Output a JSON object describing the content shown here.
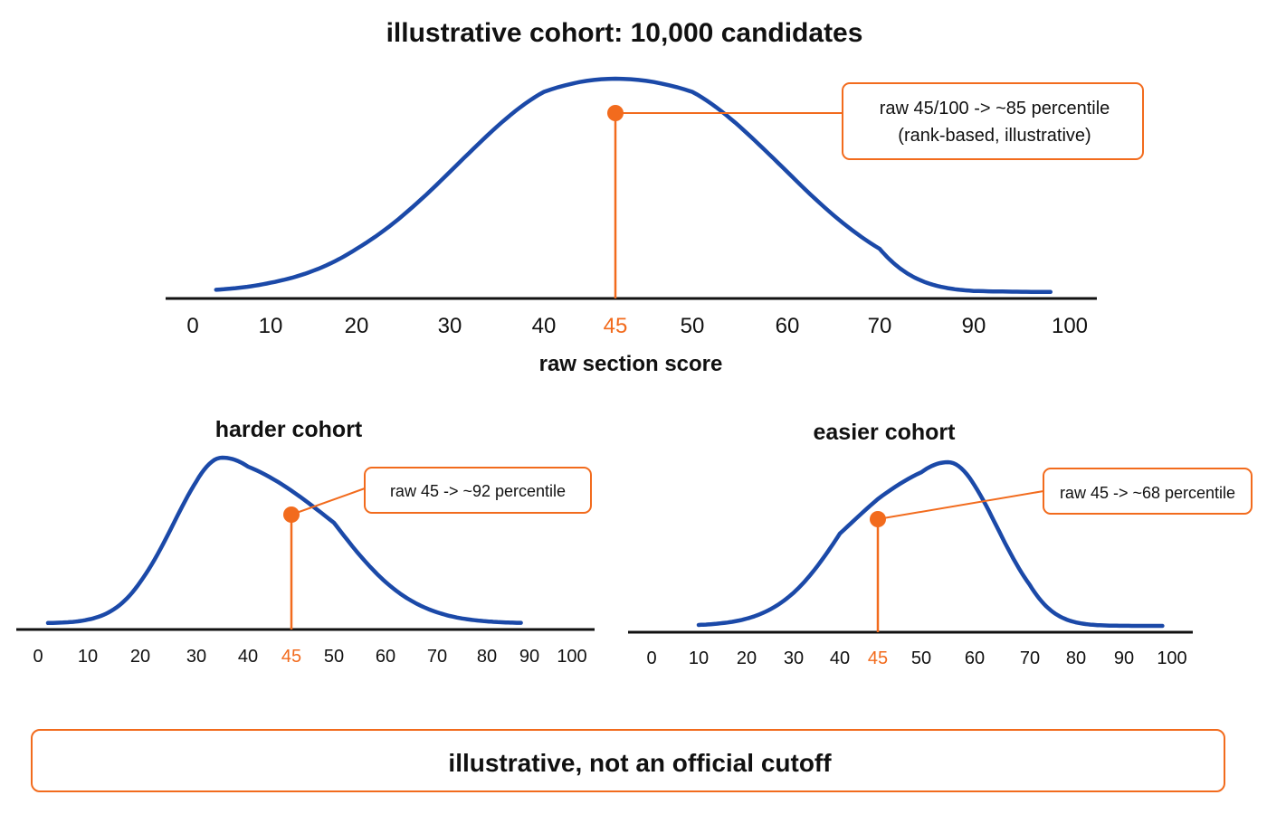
{
  "colors": {
    "curve": "#1b49a8",
    "highlight": "#f26b1d",
    "axis": "#111111",
    "text": "#111111"
  },
  "main_title": "illustrative cohort: 10,000 candidates",
  "footer": "illustrative, not an official cutoff",
  "chart_data": [
    {
      "type": "line",
      "title": "illustrative cohort: 10,000 candidates",
      "xlabel": "raw section score",
      "ylabel": "",
      "x_ticks": [
        "0",
        "10",
        "20",
        "30",
        "40",
        "45",
        "50",
        "60",
        "70",
        "90",
        "100"
      ],
      "highlight_tick": "45",
      "curve": {
        "shape": "normal",
        "peak_x": 45,
        "x_range": [
          3,
          98
        ]
      },
      "marker": {
        "x": 45
      },
      "annotation": [
        "raw 45/100 -> ~85 percentile",
        "(rank-based, illustrative)"
      ],
      "grid": false,
      "legend": "none"
    },
    {
      "type": "line",
      "title": "harder cohort",
      "xlabel": "",
      "ylabel": "",
      "x_ticks": [
        "0",
        "10",
        "20",
        "30",
        "40",
        "45",
        "50",
        "60",
        "70",
        "80",
        "90",
        "100"
      ],
      "highlight_tick": "45",
      "curve": {
        "shape": "right-skewed",
        "peak_x": 35,
        "x_range": [
          2,
          88
        ]
      },
      "marker": {
        "x": 45
      },
      "annotation": [
        "raw 45 -> ~92 percentile"
      ],
      "grid": false,
      "legend": "none"
    },
    {
      "type": "line",
      "title": "easier cohort",
      "xlabel": "",
      "ylabel": "",
      "x_ticks": [
        "0",
        "10",
        "20",
        "30",
        "40",
        "45",
        "50",
        "60",
        "70",
        "80",
        "90",
        "100"
      ],
      "highlight_tick": "45",
      "curve": {
        "shape": "left-skewed",
        "peak_x": 55,
        "x_range": [
          10,
          98
        ]
      },
      "marker": {
        "x": 45
      },
      "annotation": [
        "raw 45 -> ~68 percentile"
      ],
      "grid": false,
      "legend": "none"
    }
  ]
}
